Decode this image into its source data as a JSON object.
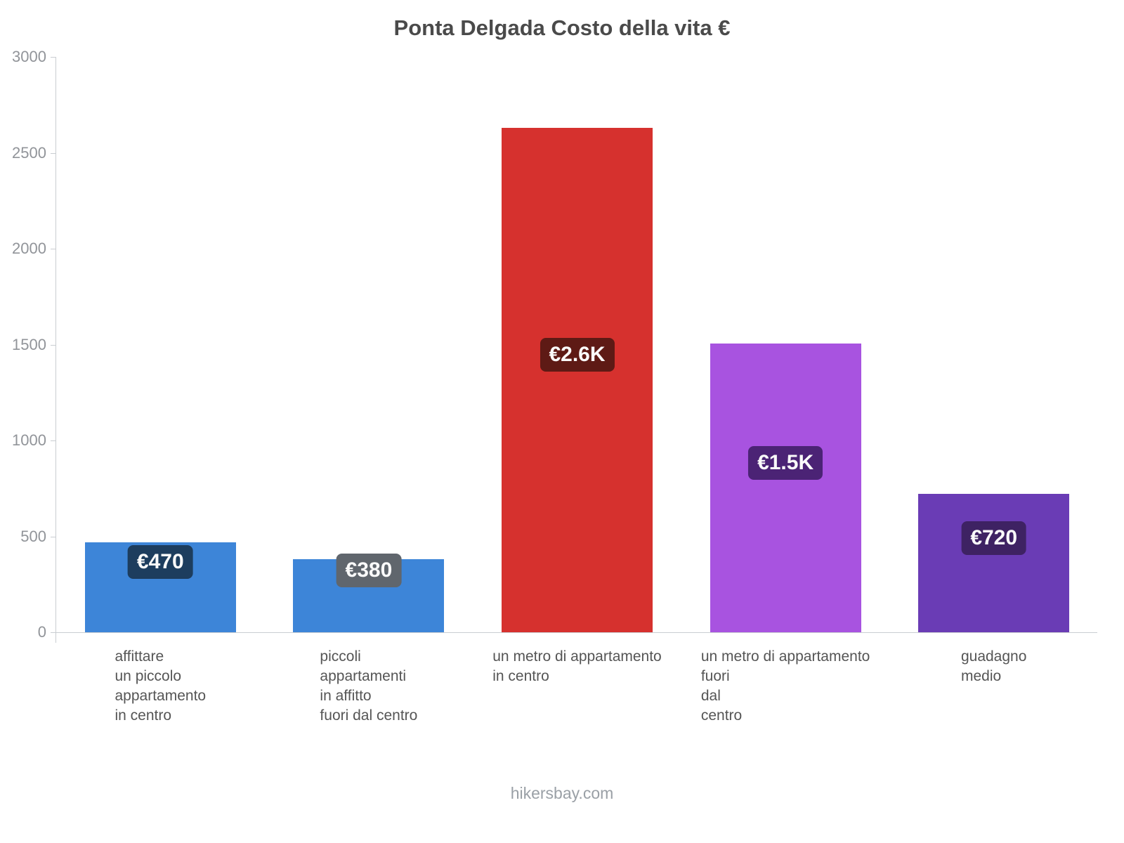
{
  "chart_data": {
    "type": "bar",
    "title": "Ponta Delgada Costo della vita €",
    "categories": [
      "affittare\nun piccolo\nappartamento\nin centro",
      "piccoli\nappartamenti\nin affitto\nfuori dal centro",
      "un metro di appartamento\nin centro",
      "un metro di appartamento\nfuori\ndal\ncentro",
      "guadagno\nmedio"
    ],
    "values": [
      470,
      380,
      2630,
      1505,
      720
    ],
    "value_labels": [
      "€470",
      "€380",
      "€2.6K",
      "€1.5K",
      "€720"
    ],
    "bar_colors": [
      "#3d85d8",
      "#3d85d8",
      "#d6312e",
      "#a853e0",
      "#6a3cb5"
    ],
    "label_bg_colors": [
      "#1d3d5e",
      "#60666d",
      "#5e1a15",
      "#4b2375",
      "#3e2263"
    ],
    "xlabel": "",
    "ylabel": "",
    "ylim": [
      0,
      3000
    ],
    "yticks": [
      0,
      500,
      1000,
      1500,
      2000,
      2500,
      3000
    ],
    "grid": false,
    "legend": false
  },
  "footer": {
    "text": "hikersbay.com"
  }
}
